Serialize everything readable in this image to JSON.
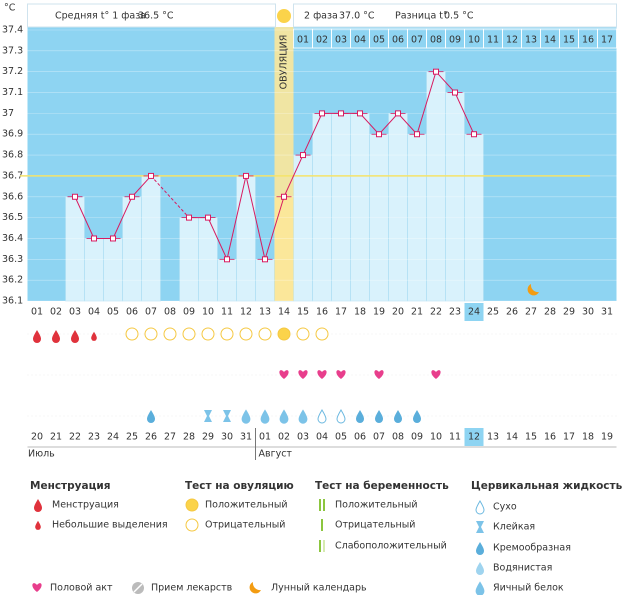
{
  "chart_data": {
    "type": "line",
    "ylabel": "°C",
    "categories": [
      "01",
      "02",
      "03",
      "04",
      "05",
      "06",
      "07",
      "08",
      "09",
      "10",
      "11",
      "12",
      "13",
      "14",
      "15",
      "16",
      "17",
      "18",
      "19",
      "20",
      "21",
      "22",
      "23",
      "24",
      "25",
      "26",
      "27",
      "28",
      "29",
      "30",
      "31"
    ],
    "series": [
      {
        "color": "#d81b60",
        "values": [
          null,
          null,
          36.6,
          36.4,
          36.4,
          36.6,
          36.7,
          null,
          36.5,
          36.5,
          36.3,
          36.7,
          36.3,
          36.6,
          36.8,
          37.0,
          37.0,
          37.0,
          36.9,
          37.0,
          36.9,
          37.2,
          37.1,
          36.9,
          null,
          null,
          null,
          null,
          null,
          null,
          null
        ]
      }
    ],
    "ylim": [
      36.1,
      37.4
    ],
    "yticks": [
      36.1,
      36.2,
      36.3,
      36.4,
      36.5,
      36.6,
      36.7,
      36.8,
      36.9,
      37,
      37.1,
      37.2,
      37.3,
      37.4
    ],
    "grid": true,
    "coverline": 36.7,
    "ovulation_category": "14",
    "ovulation_label": "ОВУЛЯЦИЯ",
    "highlight_category": "24",
    "phase2_days": [
      "01",
      "02",
      "03",
      "04",
      "05",
      "06",
      "07",
      "08",
      "09",
      "10",
      "11",
      "12",
      "13",
      "14",
      "15",
      "16",
      "17"
    ]
  },
  "header": {
    "phase1_label": "Средняя t° 1 фаза",
    "phase1_temp": "36.5 °C",
    "phase2_label": "2 фаза",
    "phase2_temp": "37.0 °C",
    "diff_label": "Разница t°",
    "diff": "0.5 °C"
  },
  "calendar": {
    "months": [
      "Июль",
      "Август"
    ],
    "dates": [
      {
        "day": "20",
        "weekend": true
      },
      {
        "day": "21",
        "weekend": true
      },
      {
        "day": "22"
      },
      {
        "day": "23"
      },
      {
        "day": "24"
      },
      {
        "day": "25"
      },
      {
        "day": "26"
      },
      {
        "day": "27",
        "weekend": true
      },
      {
        "day": "28",
        "weekend": true
      },
      {
        "day": "29"
      },
      {
        "day": "30"
      },
      {
        "day": "31"
      },
      {
        "day": "01"
      },
      {
        "day": "02"
      },
      {
        "day": "03",
        "weekend": true
      },
      {
        "day": "04",
        "weekend": true
      },
      {
        "day": "05"
      },
      {
        "day": "06"
      },
      {
        "day": "07"
      },
      {
        "day": "08"
      },
      {
        "day": "09"
      },
      {
        "day": "10",
        "weekend": true
      },
      {
        "day": "11",
        "weekend": true
      },
      {
        "day": "12",
        "today": true
      },
      {
        "day": "13"
      },
      {
        "day": "14"
      },
      {
        "day": "15"
      },
      {
        "day": "16"
      },
      {
        "day": "17",
        "weekend": true
      },
      {
        "day": "18",
        "weekend": true
      },
      {
        "day": "19"
      }
    ]
  },
  "legend": [
    {
      "title": "Менструация",
      "items": [
        "Менструация",
        "Небольшие выделения"
      ]
    },
    {
      "title": "Тест на овуляцию",
      "items": [
        "Положительный",
        "Отрицательный"
      ]
    },
    {
      "title": "Тест на беременность",
      "items": [
        "Положительный",
        "Отрицательный",
        "Слабоположительный"
      ]
    },
    {
      "title": "Цервикальная жидкость",
      "items": [
        "Сухо",
        "Клейкая",
        "Кремообразная",
        "Водянистая",
        "Яичный белок"
      ]
    }
  ],
  "footer_legend": [
    "Половой акт",
    "Прием лекарств",
    "Лунный календарь"
  ]
}
